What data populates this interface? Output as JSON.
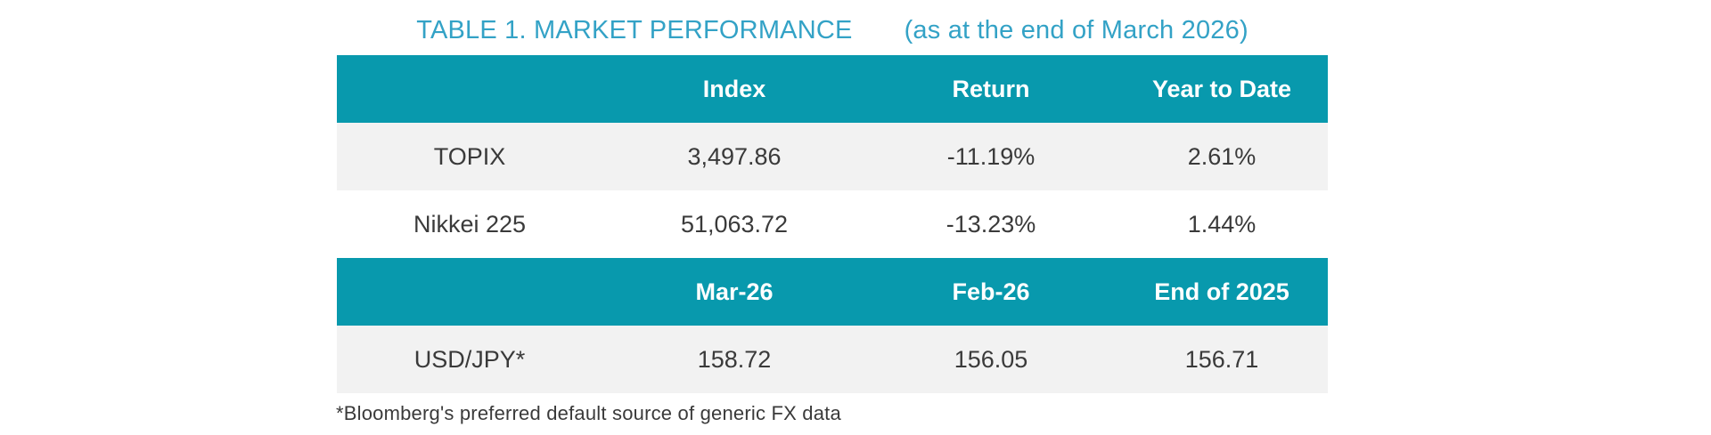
{
  "title": {
    "main": "TABLE 1. MARKET PERFORMANCE",
    "subtitle": "(as at the end of March 2026)"
  },
  "colors": {
    "header_bg": "#0899AD",
    "header_text": "#FFFFFF",
    "title_text": "#33A2C6",
    "row_alt_bg": "#F2F2F2",
    "body_text": "#3A3A3A"
  },
  "market_table": {
    "section1": {
      "headers": [
        "Index",
        "Return",
        "Year to Date"
      ],
      "rows": [
        {
          "label": "TOPIX",
          "index": "3,497.86",
          "return": "-11.19%",
          "ytd": "2.61%"
        },
        {
          "label": "Nikkei 225",
          "index": "51,063.72",
          "return": "-13.23%",
          "ytd": "1.44%"
        }
      ]
    },
    "section2": {
      "headers": [
        "Mar-26",
        "Feb-26",
        "End of 2025"
      ],
      "rows": [
        {
          "label": "USD/JPY*",
          "mar26": "158.72",
          "feb26": "156.05",
          "end_of_2025": "156.71"
        }
      ]
    }
  },
  "footnote": "*Bloomberg's preferred default source of generic FX data"
}
